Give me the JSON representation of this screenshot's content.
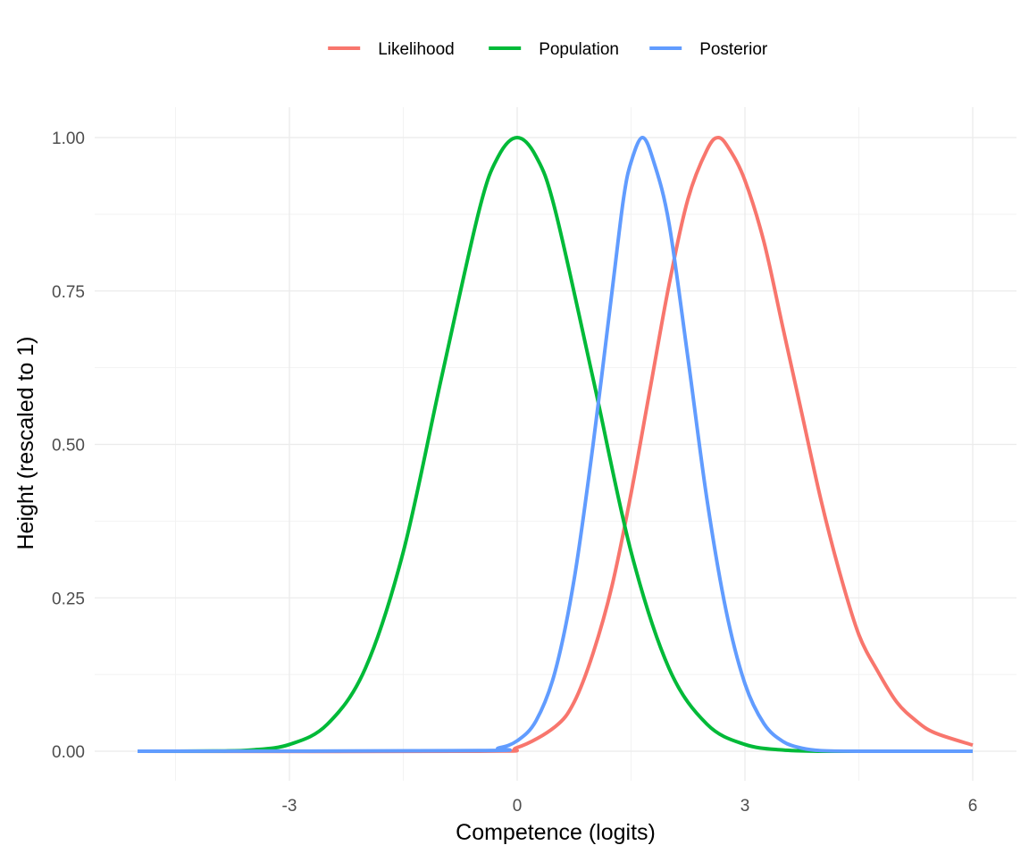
{
  "chart_data": {
    "type": "line",
    "title": "",
    "xlabel": "Competence (logits)",
    "ylabel": "Height (rescaled to 1)",
    "xlim": [
      -5,
      6
    ],
    "ylim": [
      0,
      1
    ],
    "x_ticks": [
      -3,
      0,
      3,
      6
    ],
    "x_tick_labels": [
      "-3",
      "0",
      "3",
      "6"
    ],
    "y_ticks": [
      0,
      0.25,
      0.5,
      0.75,
      1
    ],
    "y_tick_labels": [
      "0.00",
      "0.25",
      "0.50",
      "0.75",
      "1.00"
    ],
    "grid": true,
    "legend_position": "top",
    "series": [
      {
        "name": "Likelihood",
        "color": "#F8766D",
        "x": [
          -5,
          -0.5,
          0,
          0.5,
          0.75,
          1,
          1.25,
          1.5,
          1.75,
          2,
          2.25,
          2.5,
          2.65,
          2.8,
          3,
          3.25,
          3.5,
          3.75,
          4,
          4.25,
          4.5,
          4.75,
          5,
          5.25,
          5.5,
          6
        ],
        "y": [
          0,
          0,
          0.006,
          0.04,
          0.08,
          0.16,
          0.27,
          0.42,
          0.59,
          0.76,
          0.9,
          0.98,
          1,
          0.98,
          0.93,
          0.83,
          0.69,
          0.55,
          0.41,
          0.29,
          0.19,
          0.13,
          0.08,
          0.05,
          0.03,
          0.01
        ]
      },
      {
        "name": "Population",
        "color": "#00BA38",
        "x": [
          -5,
          -4,
          -3.5,
          -3,
          -2.5,
          -2,
          -1.5,
          -1,
          -0.5,
          -0.25,
          0,
          0.25,
          0.5,
          1,
          1.5,
          2,
          2.5,
          3,
          3.5,
          4
        ],
        "y": [
          0,
          0.0003,
          0.002,
          0.011,
          0.044,
          0.135,
          0.325,
          0.607,
          0.882,
          0.969,
          1,
          0.969,
          0.882,
          0.607,
          0.325,
          0.135,
          0.044,
          0.011,
          0.002,
          0
        ],
        "extend_to_zero_until": 6
      },
      {
        "name": "Posterior",
        "color": "#619CFF",
        "x": [
          -5,
          -0.5,
          -0.25,
          0,
          0.25,
          0.5,
          0.75,
          1,
          1.25,
          1.4,
          1.5,
          1.65,
          1.8,
          2,
          2.25,
          2.5,
          2.75,
          3,
          3.25,
          3.5,
          3.75,
          4,
          4.5,
          6
        ],
        "y": [
          0,
          0.001,
          0.005,
          0.017,
          0.05,
          0.13,
          0.28,
          0.5,
          0.75,
          0.9,
          0.96,
          1,
          0.96,
          0.86,
          0.64,
          0.41,
          0.23,
          0.11,
          0.045,
          0.016,
          0.005,
          0.001,
          0,
          0
        ]
      }
    ]
  }
}
